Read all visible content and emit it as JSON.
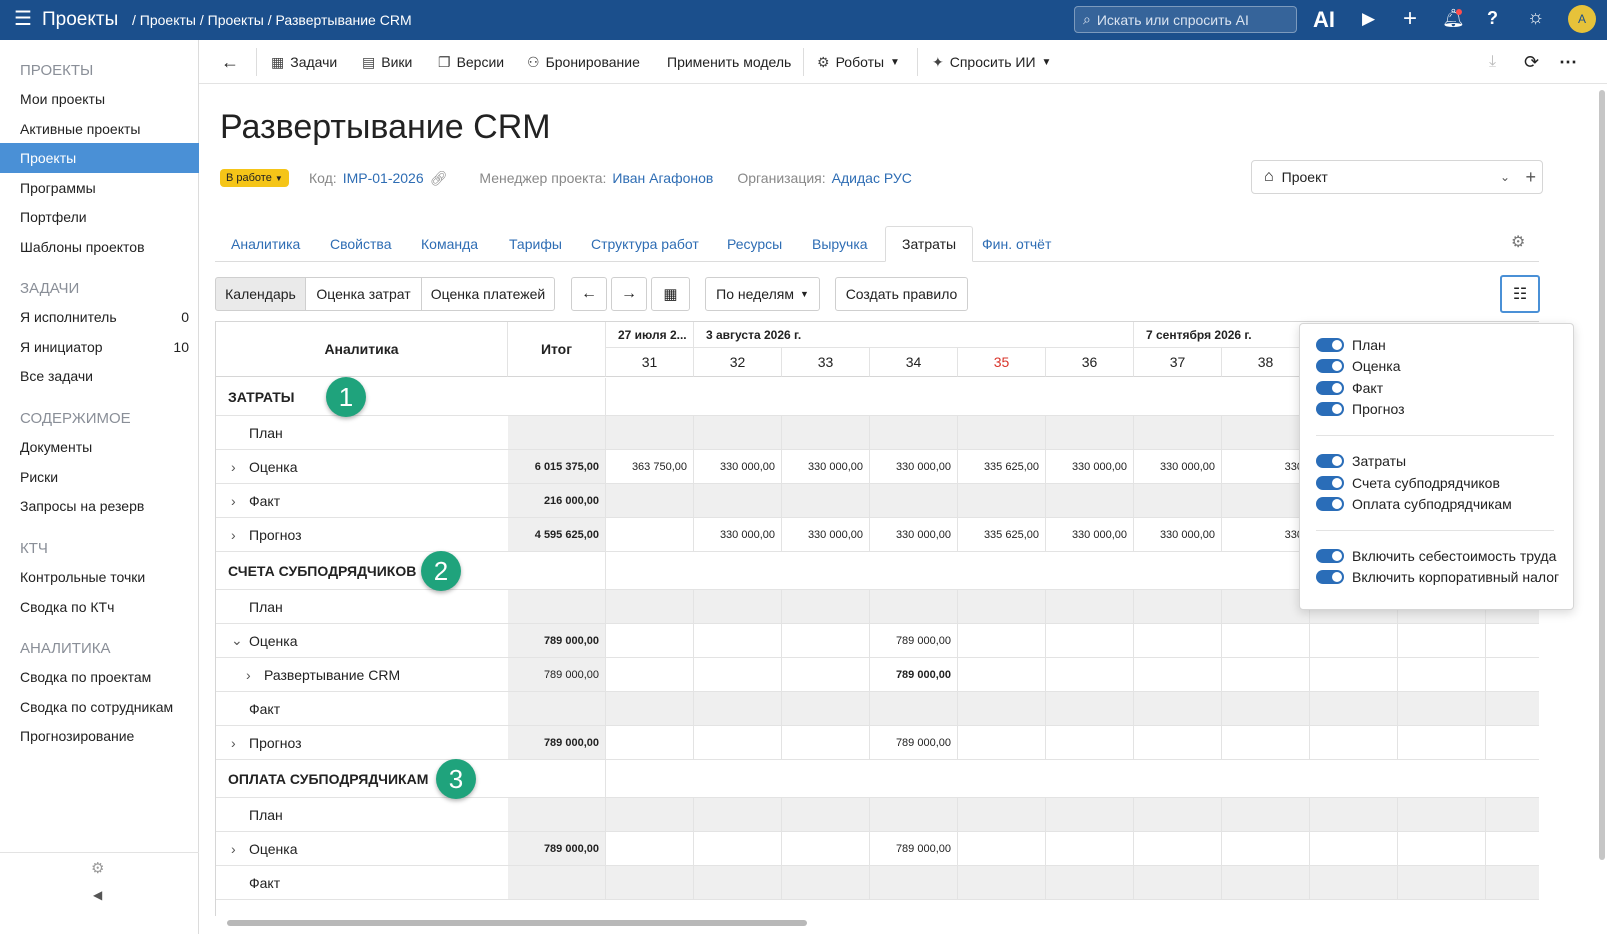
{
  "topbar": {
    "app_title": "Проекты",
    "breadcrumb": [
      "Проекты",
      "Проекты",
      "Развертывание CRM"
    ],
    "search_placeholder": "Искать или спросить AI",
    "ai_label": "AI",
    "avatar": "A"
  },
  "sidebar": {
    "sections": [
      {
        "title": "ПРОЕКТЫ",
        "items": [
          {
            "label": "Мои проекты"
          },
          {
            "label": "Активные проекты"
          },
          {
            "label": "Проекты",
            "active": true
          },
          {
            "label": "Программы"
          },
          {
            "label": "Портфели"
          },
          {
            "label": "Шаблоны проектов"
          }
        ]
      },
      {
        "title": "ЗАДАЧИ",
        "items": [
          {
            "label": "Я исполнитель",
            "count": "0"
          },
          {
            "label": "Я инициатор",
            "count": "10"
          },
          {
            "label": "Все задачи"
          }
        ]
      },
      {
        "title": "СОДЕРЖИМОЕ",
        "items": [
          {
            "label": "Документы"
          },
          {
            "label": "Риски"
          },
          {
            "label": "Запросы на резерв"
          }
        ]
      },
      {
        "title": "КТЧ",
        "items": [
          {
            "label": "Контрольные точки"
          },
          {
            "label": "Сводка по КТч"
          }
        ]
      },
      {
        "title": "АНАЛИТИКА",
        "items": [
          {
            "label": "Сводка по проектам"
          },
          {
            "label": "Сводка по сотрудникам"
          },
          {
            "label": "Прогнозирование"
          }
        ]
      }
    ]
  },
  "toolbar": {
    "tasks": "Задачи",
    "wiki": "Вики",
    "versions": "Версии",
    "booking": "Бронирование",
    "apply_model": "Применить модель",
    "robots": "Роботы",
    "ask_ai": "Спросить ИИ"
  },
  "project": {
    "title": "Развертывание CRM",
    "status": "В работе",
    "code_label": "Код:",
    "code": "IMP-01-2026",
    "manager_label": "Менеджер проекта:",
    "manager": "Иван Агафонов",
    "org_label": "Организация:",
    "org": "Адидас РУС",
    "view_select": "Проект"
  },
  "tabs": [
    "Аналитика",
    "Свойства",
    "Команда",
    "Тарифы",
    "Структура работ",
    "Ресурсы",
    "Выручка",
    "Затраты",
    "Фин. отчёт"
  ],
  "active_tab": "Затраты",
  "subtabs": [
    "Календарь",
    "Оценка затрат",
    "Оценка платежей"
  ],
  "period_select": "По неделям",
  "create_rule": "Создать правило",
  "table": {
    "header_analytics": "Аналитика",
    "header_total": "Итог",
    "date_groups": [
      "27 июля 2...",
      "3 августа 2026 г.",
      "7 сентября 2026 г."
    ],
    "weeks": [
      "31",
      "32",
      "33",
      "34",
      "35",
      "36",
      "37",
      "38"
    ],
    "sections": [
      {
        "title": "ЗАТРАТЫ",
        "badge": "1",
        "rows": [
          {
            "label": "План",
            "total": "",
            "values": []
          },
          {
            "label": "Оценка",
            "chevron": "right",
            "total": "6 015 375,00",
            "values": [
              "363 750,00",
              "330 000,00",
              "330 000,00",
              "330 000,00",
              "335 625,00",
              "330 000,00",
              "330 000,00",
              "330"
            ]
          },
          {
            "label": "Факт",
            "chevron": "right",
            "total": "216 000,00",
            "values": []
          },
          {
            "label": "Прогноз",
            "chevron": "right",
            "total": "4 595 625,00",
            "values": [
              "",
              "330 000,00",
              "330 000,00",
              "330 000,00",
              "335 625,00",
              "330 000,00",
              "330 000,00",
              "330"
            ]
          }
        ]
      },
      {
        "title": "СЧЕТА СУБПОДРЯДЧИКОВ",
        "badge": "2",
        "rows": [
          {
            "label": "План",
            "total": "",
            "values": []
          },
          {
            "label": "Оценка",
            "chevron": "down",
            "total": "789 000,00",
            "values": [
              "",
              "",
              "",
              "789 000,00"
            ]
          },
          {
            "label": "Развертывание CRM",
            "chevron": "right",
            "indent": true,
            "total": "789 000,00",
            "values": [
              "",
              "",
              "",
              "789 000,00"
            ]
          },
          {
            "label": "Факт",
            "total": "",
            "values": []
          },
          {
            "label": "Прогноз",
            "chevron": "right",
            "total": "789 000,00",
            "values": [
              "",
              "",
              "",
              "789 000,00"
            ]
          }
        ]
      },
      {
        "title": "ОПЛАТА СУБПОДРЯДЧИКАМ",
        "badge": "3",
        "rows": [
          {
            "label": "План",
            "total": "",
            "values": []
          },
          {
            "label": "Оценка",
            "chevron": "right",
            "total": "789 000,00",
            "values": [
              "",
              "",
              "",
              "789 000,00"
            ]
          },
          {
            "label": "Факт",
            "total": "",
            "values": []
          }
        ]
      }
    ]
  },
  "popup": {
    "group1": [
      "План",
      "Оценка",
      "Факт",
      "Прогноз"
    ],
    "group2": [
      "Затраты",
      "Счета субподрядчиков",
      "Оплата субподрядчикам"
    ],
    "group3": [
      "Включить себестоимость труда",
      "Включить корпоративный налог"
    ]
  },
  "colors": {
    "topbar": "#1b4f8c",
    "active_side": "#4a90d6",
    "link": "#2e6db4",
    "badge": "#1fa37c",
    "status": "#f5c518",
    "weekend": "#d9342b"
  }
}
